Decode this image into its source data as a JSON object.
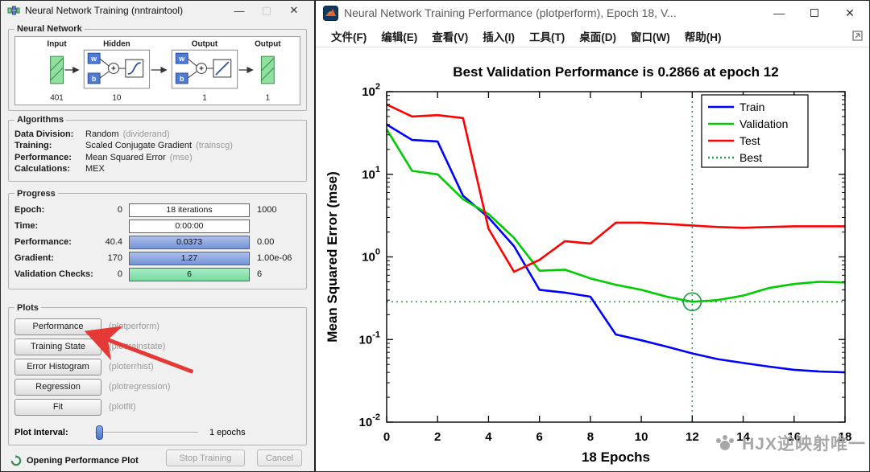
{
  "left_window": {
    "title": "Neural Network Training (nntraintool)",
    "sections": {
      "neural_network": {
        "label": "Neural Network",
        "input_label": "Input",
        "input_size": "401",
        "hidden_label": "Hidden",
        "hidden_size": "10",
        "output_layer_label": "Output",
        "output_layer_size": "1",
        "output_label": "Output",
        "output_size": "1",
        "w_label": "w",
        "b_label": "b"
      },
      "algorithms": {
        "label": "Algorithms",
        "rows": [
          {
            "name": "Data Division:",
            "value": "Random",
            "code": "(dividerand)"
          },
          {
            "name": "Training:",
            "value": "Scaled Conjugate Gradient",
            "code": "(trainscg)"
          },
          {
            "name": "Performance:",
            "value": "Mean Squared Error",
            "code": "(mse)"
          },
          {
            "name": "Calculations:",
            "value": "MEX",
            "code": ""
          }
        ]
      },
      "progress": {
        "label": "Progress",
        "rows": [
          {
            "name": "Epoch:",
            "left": "0",
            "bar_text": "18 iterations",
            "right": "1000",
            "fill": "none"
          },
          {
            "name": "Time:",
            "left": "",
            "bar_text": "0:00:00",
            "right": "",
            "fill": "none"
          },
          {
            "name": "Performance:",
            "left": "40.4",
            "bar_text": "0.0373",
            "right": "0.00",
            "fill": "blue"
          },
          {
            "name": "Gradient:",
            "left": "170",
            "bar_text": "1.27",
            "right": "1.00e-06",
            "fill": "blue"
          },
          {
            "name": "Validation Checks:",
            "left": "0",
            "bar_text": "6",
            "right": "6",
            "fill": "green"
          }
        ]
      },
      "plots": {
        "label": "Plots",
        "buttons": [
          {
            "label": "Performance",
            "code": "(plotperform)"
          },
          {
            "label": "Training State",
            "code": "(plottrainstate)"
          },
          {
            "label": "Error Histogram",
            "code": "(ploterrhist)"
          },
          {
            "label": "Regression",
            "code": "(plotregression)"
          },
          {
            "label": "Fit",
            "code": "(plotfit)"
          }
        ],
        "plot_interval_label": "Plot Interval:",
        "plot_interval_value": "1 epochs"
      }
    },
    "status": "Opening Performance Plot",
    "stop_button": "Stop Training",
    "cancel_button": "Cancel"
  },
  "right_window": {
    "title": "Neural Network Training Performance (plotperform), Epoch 18, V...",
    "menus": [
      "文件(F)",
      "编辑(E)",
      "查看(V)",
      "插入(I)",
      "工具(T)",
      "桌面(D)",
      "窗口(W)",
      "帮助(H)"
    ],
    "watermark": "HJX逆映射唯一"
  },
  "chart_data": {
    "type": "line",
    "title": "Best Validation Performance is 0.2866 at epoch 12",
    "xlabel": "18 Epochs",
    "ylabel": "Mean Squared Error  (mse)",
    "x": [
      0,
      1,
      2,
      3,
      4,
      5,
      6,
      7,
      8,
      9,
      10,
      11,
      12,
      13,
      14,
      15,
      16,
      17,
      18
    ],
    "x_ticks": [
      0,
      2,
      4,
      6,
      8,
      10,
      12,
      14,
      16,
      18
    ],
    "xlim": [
      0,
      18
    ],
    "y_scale": "log",
    "ylog_min": -2,
    "ylog_max": 2,
    "grid": false,
    "legend_position": "top-right",
    "best_epoch": 12,
    "best_value": 0.2866,
    "best_label": "Best",
    "best_color": "#2e9e4f",
    "series": [
      {
        "name": "Train",
        "color": "#0000ff",
        "values": [
          40,
          26,
          25,
          5.5,
          3.0,
          1.35,
          0.4,
          0.37,
          0.33,
          0.115,
          0.098,
          0.082,
          0.068,
          0.058,
          0.052,
          0.047,
          0.043,
          0.041,
          0.04
        ]
      },
      {
        "name": "Validation",
        "color": "#00cc00",
        "values": [
          35,
          11,
          10,
          5.0,
          3.3,
          1.7,
          0.68,
          0.7,
          0.55,
          0.46,
          0.4,
          0.33,
          0.2866,
          0.3,
          0.34,
          0.42,
          0.47,
          0.5,
          0.49
        ]
      },
      {
        "name": "Test",
        "color": "#ff0000",
        "values": [
          70,
          50,
          52,
          48,
          2.2,
          0.66,
          0.92,
          1.55,
          1.45,
          2.6,
          2.6,
          2.5,
          2.4,
          2.3,
          2.25,
          2.3,
          2.35,
          2.35,
          2.35
        ]
      }
    ]
  }
}
